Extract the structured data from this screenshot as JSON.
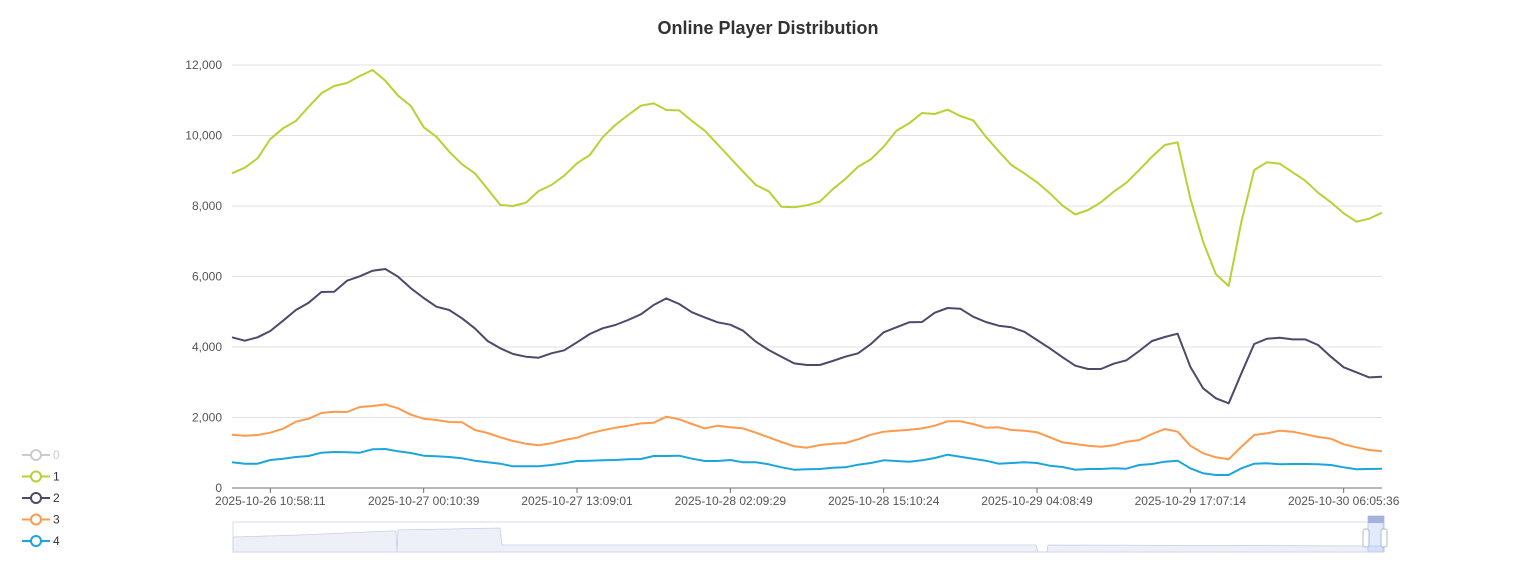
{
  "chart_data": {
    "type": "line",
    "title": "Online Player Distribution",
    "xlabel": "",
    "ylabel": "",
    "ylim": [
      0,
      12000
    ],
    "yticks": [
      0,
      2000,
      4000,
      6000,
      8000,
      10000,
      12000
    ],
    "ytick_labels": [
      "0",
      "2,000",
      "4,000",
      "6,000",
      "8,000",
      "10,000",
      "12,000"
    ],
    "grid": true,
    "point_count": 91,
    "x_labels": [
      {
        "index": 3,
        "label": "2025-10-26 10:58:11"
      },
      {
        "index": 15,
        "label": "2025-10-27 00:10:39"
      },
      {
        "index": 27,
        "label": "2025-10-27 13:09:01"
      },
      {
        "index": 39,
        "label": "2025-10-28 02:09:29"
      },
      {
        "index": 51,
        "label": "2025-10-28 15:10:24"
      },
      {
        "index": 63,
        "label": "2025-10-29 04:08:49"
      },
      {
        "index": 75,
        "label": "2025-10-29 17:07:14"
      },
      {
        "index": 87,
        "label": "2025-10-30 06:05:36"
      }
    ],
    "legend_placement": "bottom-left",
    "data_zoom": {
      "type": "slider",
      "orientation": "horizontal",
      "position": "bottom"
    },
    "series": [
      {
        "name": "0",
        "color": "#cccccc",
        "hidden": true,
        "values": []
      },
      {
        "name": "1",
        "color": "#b5d334",
        "values": [
          8927,
          9087,
          9352,
          9900,
          10203,
          10411,
          10818,
          11196,
          11404,
          11489,
          11688,
          11858,
          11556,
          11130,
          10837,
          10232,
          9967,
          9541,
          9182,
          8927,
          8482,
          8028,
          8000,
          8094,
          8425,
          8596,
          8860,
          9210,
          9447,
          9948,
          10298,
          10581,
          10846,
          10912,
          10723,
          10713,
          10411,
          10137,
          9749,
          9361,
          8974,
          8596,
          8416,
          7981,
          7962,
          8019,
          8123,
          8473,
          8766,
          9116,
          9324,
          9683,
          10137,
          10345,
          10638,
          10610,
          10733,
          10553,
          10430,
          9967,
          9551,
          9163,
          8927,
          8671,
          8359,
          8009,
          7763,
          7886,
          8104,
          8407,
          8662,
          9021,
          9399,
          9730,
          9806,
          8217,
          6988,
          6061,
          5730,
          7555,
          9021,
          9239,
          9201,
          8955,
          8718,
          8378,
          8104,
          7792,
          7555,
          7640,
          7811
        ]
      },
      {
        "name": "2",
        "color": "#4b4a6b",
        "values": [
          4274,
          4180,
          4274,
          4454,
          4747,
          5050,
          5257,
          5560,
          5570,
          5882,
          6005,
          6165,
          6213,
          5995,
          5664,
          5390,
          5144,
          5050,
          4813,
          4530,
          4170,
          3962,
          3801,
          3726,
          3697,
          3820,
          3905,
          4132,
          4369,
          4530,
          4624,
          4766,
          4927,
          5191,
          5380,
          5220,
          4983,
          4841,
          4700,
          4633,
          4463,
          4151,
          3914,
          3726,
          3536,
          3489,
          3489,
          3603,
          3726,
          3820,
          4085,
          4416,
          4558,
          4700,
          4709,
          4974,
          5106,
          5087,
          4860,
          4709,
          4605,
          4558,
          4435,
          4198,
          3962,
          3707,
          3470,
          3376,
          3376,
          3527,
          3622,
          3886,
          4170,
          4284,
          4378,
          3442,
          2827,
          2544,
          2402,
          3253,
          4085,
          4236,
          4265,
          4217,
          4217,
          4057,
          3726,
          3423,
          3281,
          3139,
          3158
        ]
      },
      {
        "name": "3",
        "color": "#ff9a4d",
        "values": [
          1513,
          1485,
          1504,
          1570,
          1683,
          1882,
          1967,
          2128,
          2165,
          2156,
          2298,
          2326,
          2373,
          2260,
          2080,
          1967,
          1929,
          1872,
          1863,
          1645,
          1560,
          1437,
          1333,
          1258,
          1210,
          1267,
          1362,
          1428,
          1551,
          1636,
          1712,
          1768,
          1834,
          1853,
          2024,
          1948,
          1816,
          1692,
          1768,
          1721,
          1692,
          1570,
          1437,
          1305,
          1182,
          1144,
          1220,
          1258,
          1277,
          1381,
          1513,
          1598,
          1626,
          1655,
          1692,
          1768,
          1891,
          1891,
          1816,
          1712,
          1721,
          1645,
          1626,
          1579,
          1437,
          1295,
          1248,
          1201,
          1173,
          1210,
          1314,
          1362,
          1532,
          1674,
          1598,
          1201,
          983,
          870,
          813,
          1173,
          1504,
          1551,
          1626,
          1598,
          1522,
          1447,
          1399,
          1239,
          1154,
          1078,
          1040
        ]
      },
      {
        "name": "4",
        "color": "#1aa6dd",
        "values": [
          728,
          690,
          690,
          794,
          832,
          879,
          908,
          1002,
          1021,
          1012,
          1002,
          1097,
          1106,
          1040,
          993,
          917,
          898,
          879,
          842,
          775,
          728,
          690,
          615,
          615,
          615,
          652,
          700,
          766,
          775,
          785,
          794,
          813,
          823,
          908,
          908,
          917,
          832,
          766,
          766,
          794,
          728,
          728,
          671,
          586,
          520,
          530,
          539,
          577,
          586,
          662,
          709,
          785,
          766,
          747,
          785,
          851,
          946,
          889,
          832,
          775,
          690,
          709,
          728,
          709,
          634,
          596,
          520,
          539,
          539,
          558,
          548,
          652,
          681,
          747,
          775,
          558,
          416,
          369,
          369,
          558,
          690,
          700,
          671,
          681,
          681,
          671,
          652,
          586,
          530,
          539,
          548
        ]
      }
    ]
  }
}
